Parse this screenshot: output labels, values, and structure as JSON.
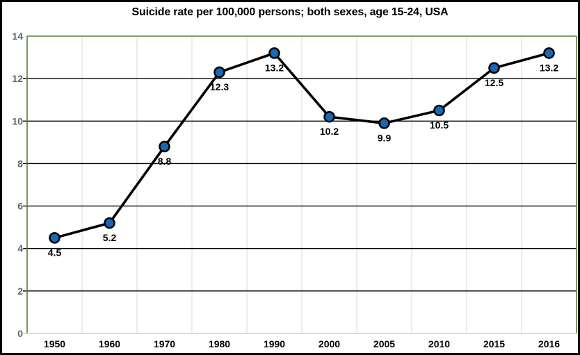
{
  "title": "Suicide rate per 100,000 persons; both sexes, age 15-24, USA",
  "chart_data": {
    "type": "line",
    "title": "Suicide rate per 100,000 persons; both sexes, age 15-24, USA",
    "categories": [
      "1950",
      "1960",
      "1970",
      "1980",
      "1990",
      "2000",
      "2005",
      "2010",
      "2015",
      "2016"
    ],
    "series": [
      {
        "name": "Suicide rate per 100,000 persons",
        "values": [
          4.5,
          5.2,
          8.8,
          12.3,
          13.2,
          10.2,
          9.9,
          10.5,
          12.5,
          13.2
        ]
      }
    ],
    "data_labels": [
      "4.5",
      "5.2",
      "8.8",
      "12.3",
      "13.2",
      "10.2",
      "9.9",
      "10.5",
      "12.5",
      "13.2"
    ],
    "xlabel": "",
    "ylabel": "",
    "ylim": [
      0,
      14
    ],
    "ytick_step": 2,
    "yticks": [
      "0",
      "2",
      "4",
      "6",
      "8",
      "10",
      "12",
      "14"
    ],
    "legend_position": "none",
    "grid": {
      "horizontal": true,
      "vertical": true
    },
    "colors": {
      "marker_fill": "#1569B9",
      "marker_stroke": "#000000",
      "line": "#000000",
      "plot_border": "#538135",
      "axis_line_bottom": "#CFCFCF",
      "hgrid": "#000000",
      "vgrid": "#D9D9D9",
      "ytick_label": "#5A6372",
      "xtick_label": "#000000",
      "data_label": "#000000",
      "title": "#000000",
      "outer_border": "#000000",
      "background": "#FFFFFF"
    }
  }
}
